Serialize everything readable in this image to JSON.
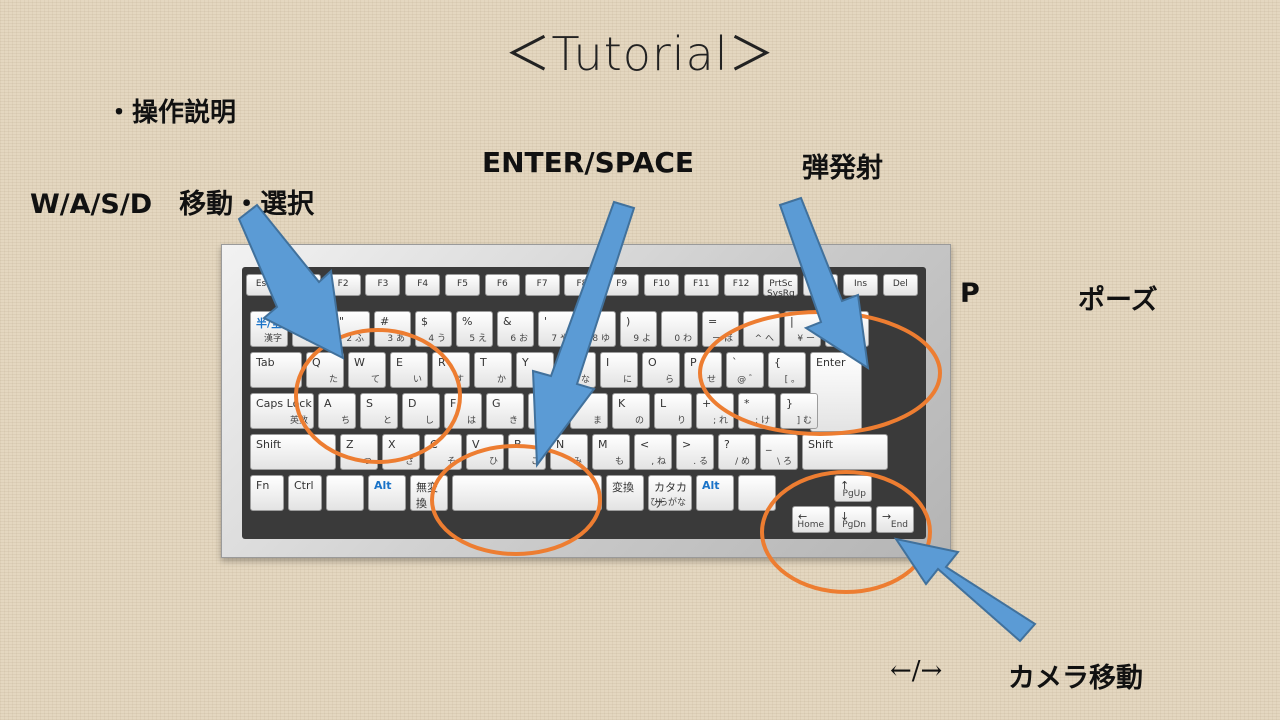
{
  "title": "＜Tutorial＞",
  "heading": "・操作説明",
  "labels": {
    "wasd": "W/A/S/D　移動・選択",
    "enter_space": "ENTER/SPACE",
    "fire": "弾発射",
    "p_key": "P",
    "pause": "ポーズ",
    "arrows": "←/→",
    "camera": "カメラ移動"
  },
  "keyboard": {
    "fn_row": [
      "Esc",
      "F1",
      "F2",
      "F3",
      "F4",
      "F5",
      "F6",
      "F7",
      "F8",
      "F9",
      "F10",
      "F11",
      "F12",
      "PrtSc SysRq",
      "Pause",
      "Ins",
      "Del"
    ],
    "number_row": [
      {
        "main": "半/全",
        "sub": "漢字"
      },
      {
        "main": "!",
        "sub": "1 ぬ"
      },
      {
        "main": "\"",
        "sub": "2 ふ"
      },
      {
        "main": "#",
        "sub": "3 あ"
      },
      {
        "main": "$",
        "sub": "4 う"
      },
      {
        "main": "%",
        "sub": "5 え"
      },
      {
        "main": "&",
        "sub": "6 お"
      },
      {
        "main": "'",
        "sub": "7 や"
      },
      {
        "main": "(",
        "sub": "8 ゆ"
      },
      {
        "main": ")",
        "sub": "9 よ"
      },
      {
        "main": "",
        "sub": "0 わ"
      },
      {
        "main": "=",
        "sub": "ー ほ"
      },
      {
        "main": "~",
        "sub": "^ へ"
      },
      {
        "main": "|",
        "sub": "¥ ー"
      },
      {
        "main": "Back",
        "sub": "Space"
      }
    ],
    "q_row": [
      {
        "main": "Tab",
        "sub": ""
      },
      {
        "main": "Q",
        "sub": "た"
      },
      {
        "main": "W",
        "sub": "て"
      },
      {
        "main": "E",
        "sub": "い"
      },
      {
        "main": "R",
        "sub": "す"
      },
      {
        "main": "T",
        "sub": "か"
      },
      {
        "main": "Y",
        "sub": "ん"
      },
      {
        "main": "U",
        "sub": "な"
      },
      {
        "main": "I",
        "sub": "に"
      },
      {
        "main": "O",
        "sub": "ら"
      },
      {
        "main": "P",
        "sub": "せ"
      },
      {
        "main": "`",
        "sub": "@ ゛"
      },
      {
        "main": "{",
        "sub": "[ 。"
      },
      {
        "main": "Enter",
        "sub": ""
      }
    ],
    "a_row": [
      {
        "main": "Caps Lock",
        "sub": "英数"
      },
      {
        "main": "A",
        "sub": "ち"
      },
      {
        "main": "S",
        "sub": "と"
      },
      {
        "main": "D",
        "sub": "し"
      },
      {
        "main": "F",
        "sub": "は"
      },
      {
        "main": "G",
        "sub": "き"
      },
      {
        "main": "H",
        "sub": "く"
      },
      {
        "main": "J",
        "sub": "ま"
      },
      {
        "main": "K",
        "sub": "の"
      },
      {
        "main": "L",
        "sub": "り"
      },
      {
        "main": "+",
        "sub": "; れ"
      },
      {
        "main": "*",
        "sub": ": け"
      },
      {
        "main": "}",
        "sub": "] む"
      }
    ],
    "z_row": [
      {
        "main": "Shift",
        "sub": ""
      },
      {
        "main": "Z",
        "sub": "つ"
      },
      {
        "main": "X",
        "sub": "さ"
      },
      {
        "main": "C",
        "sub": "そ"
      },
      {
        "main": "V",
        "sub": "ひ"
      },
      {
        "main": "B",
        "sub": "こ"
      },
      {
        "main": "N",
        "sub": "み"
      },
      {
        "main": "M",
        "sub": "も"
      },
      {
        "main": "<",
        "sub": ", ね"
      },
      {
        "main": ">",
        "sub": ". る"
      },
      {
        "main": "?",
        "sub": "/ め"
      },
      {
        "main": "_",
        "sub": "\\ ろ"
      },
      {
        "main": "Shift",
        "sub": ""
      }
    ],
    "bottom_row": [
      {
        "main": "Fn",
        "sub": ""
      },
      {
        "main": "Ctrl",
        "sub": ""
      },
      {
        "main": "",
        "sub": ""
      },
      {
        "main": "Alt",
        "sub": ""
      },
      {
        "main": "無変換",
        "sub": ""
      },
      {
        "main": "",
        "sub": ""
      },
      {
        "main": "変換",
        "sub": ""
      },
      {
        "main": "カタカナ",
        "sub": "ひらがな"
      },
      {
        "main": "Alt",
        "sub": ""
      },
      {
        "main": "",
        "sub": ""
      }
    ],
    "arrow_keys": [
      {
        "main": "↑",
        "sub": "PgUp"
      },
      {
        "main": "←",
        "sub": "Home"
      },
      {
        "main": "↓",
        "sub": "PgDn"
      },
      {
        "main": "→",
        "sub": "End"
      }
    ]
  },
  "colors": {
    "arrow": "#5b9bd5",
    "arrow_border": "#41719c",
    "circle": "#ed7d31"
  }
}
